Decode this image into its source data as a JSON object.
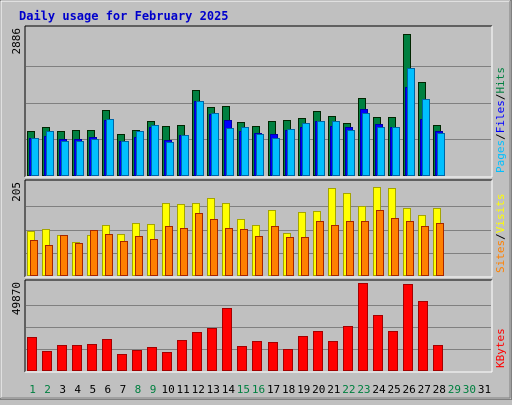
{
  "chart_data": {
    "type": "bar",
    "title": "Daily usage for February 2025",
    "categories": [
      "1",
      "2",
      "3",
      "4",
      "5",
      "6",
      "7",
      "8",
      "9",
      "10",
      "11",
      "12",
      "13",
      "14",
      "15",
      "16",
      "17",
      "18",
      "19",
      "20",
      "21",
      "22",
      "23",
      "24",
      "25",
      "26",
      "27",
      "28",
      "29",
      "30",
      "31"
    ],
    "weekend_days": [
      "1",
      "2",
      "8",
      "9",
      "15",
      "16",
      "22",
      "23",
      "29",
      "30"
    ],
    "panels": [
      {
        "id": "top",
        "ymax": 2886,
        "ymax_label": "2886",
        "side_labels": [
          {
            "text": "Hits",
            "color": "#008040"
          },
          {
            "text": "/",
            "color": "#000000"
          },
          {
            "text": "Files",
            "color": "#0000ff"
          },
          {
            "text": "/",
            "color": "#000000"
          },
          {
            "text": "Pages",
            "color": "#00c0ff"
          }
        ],
        "series": [
          {
            "name": "Hits",
            "color": "#008040",
            "values": [
              890,
              960,
              890,
              900,
              910,
              1300,
              820,
              900,
              1080,
              980,
              1000,
              1690,
              1350,
              1380,
              1060,
              990,
              1070,
              1090,
              1130,
              1280,
              1180,
              1050,
              1540,
              1160,
              1160,
              2790,
              1840,
              1000
            ]
          },
          {
            "name": "Files",
            "color": "#0000ff",
            "values": [
              740,
              780,
              720,
              720,
              760,
              1100,
              680,
              760,
              960,
              700,
              810,
              1480,
              1220,
              1090,
              890,
              840,
              820,
              900,
              960,
              1070,
              990,
              960,
              1310,
              1030,
              960,
              1740,
              1120,
              890
            ]
          },
          {
            "name": "Pages",
            "color": "#00c0ff",
            "values": [
              740,
              890,
              690,
              690,
              730,
              1120,
              680,
              880,
              1000,
              660,
              800,
              1480,
              1240,
              950,
              970,
              820,
              750,
              930,
              1050,
              1070,
              1070,
              910,
              1230,
              960,
              960,
              2130,
              1520,
              840
            ]
          }
        ]
      },
      {
        "id": "middle",
        "ymax": 205,
        "ymax_label": "205",
        "side_labels": [
          {
            "text": "Visits",
            "color": "#ffff00"
          },
          {
            "text": "/",
            "color": "#000000"
          },
          {
            "text": "Sites",
            "color": "#ff8000"
          }
        ],
        "series": [
          {
            "name": "Visits",
            "color": "#ffff00",
            "values": [
              100,
              103,
              90,
              75,
              90,
              112,
              93,
              116,
              115,
              162,
              158,
              162,
              172,
              162,
              126,
              112,
              145,
              95,
              140,
              143,
              195,
              182,
              155,
              197,
              195,
              149,
              135,
              150
            ]
          },
          {
            "name": "Sites",
            "color": "#ff8000",
            "values": [
              80,
              68,
              91,
              72,
              102,
              93,
              78,
              88,
              82,
              110,
              106,
              138,
              126,
              106,
              104,
              89,
              110,
              85,
              87,
              121,
              112,
              121,
              121,
              145,
              128,
              122,
              110,
              117
            ]
          }
        ]
      },
      {
        "id": "bottom",
        "ymax": 49870,
        "ymax_label": "49870",
        "side_labels": [
          {
            "text": "KBytes",
            "color": "#ff0000"
          }
        ],
        "series": [
          {
            "name": "KBytes",
            "color": "#ff0000",
            "values": [
              19000,
              11500,
              15000,
              15000,
              15500,
              18000,
              9500,
              12000,
              13500,
              11000,
              17500,
              22000,
              24500,
              35500,
              14000,
              17000,
              16500,
              12500,
              20000,
              22500,
              17000,
              25500,
              49870,
              31500,
              22500,
              49500,
              39500,
              15000
            ]
          }
        ]
      }
    ]
  }
}
